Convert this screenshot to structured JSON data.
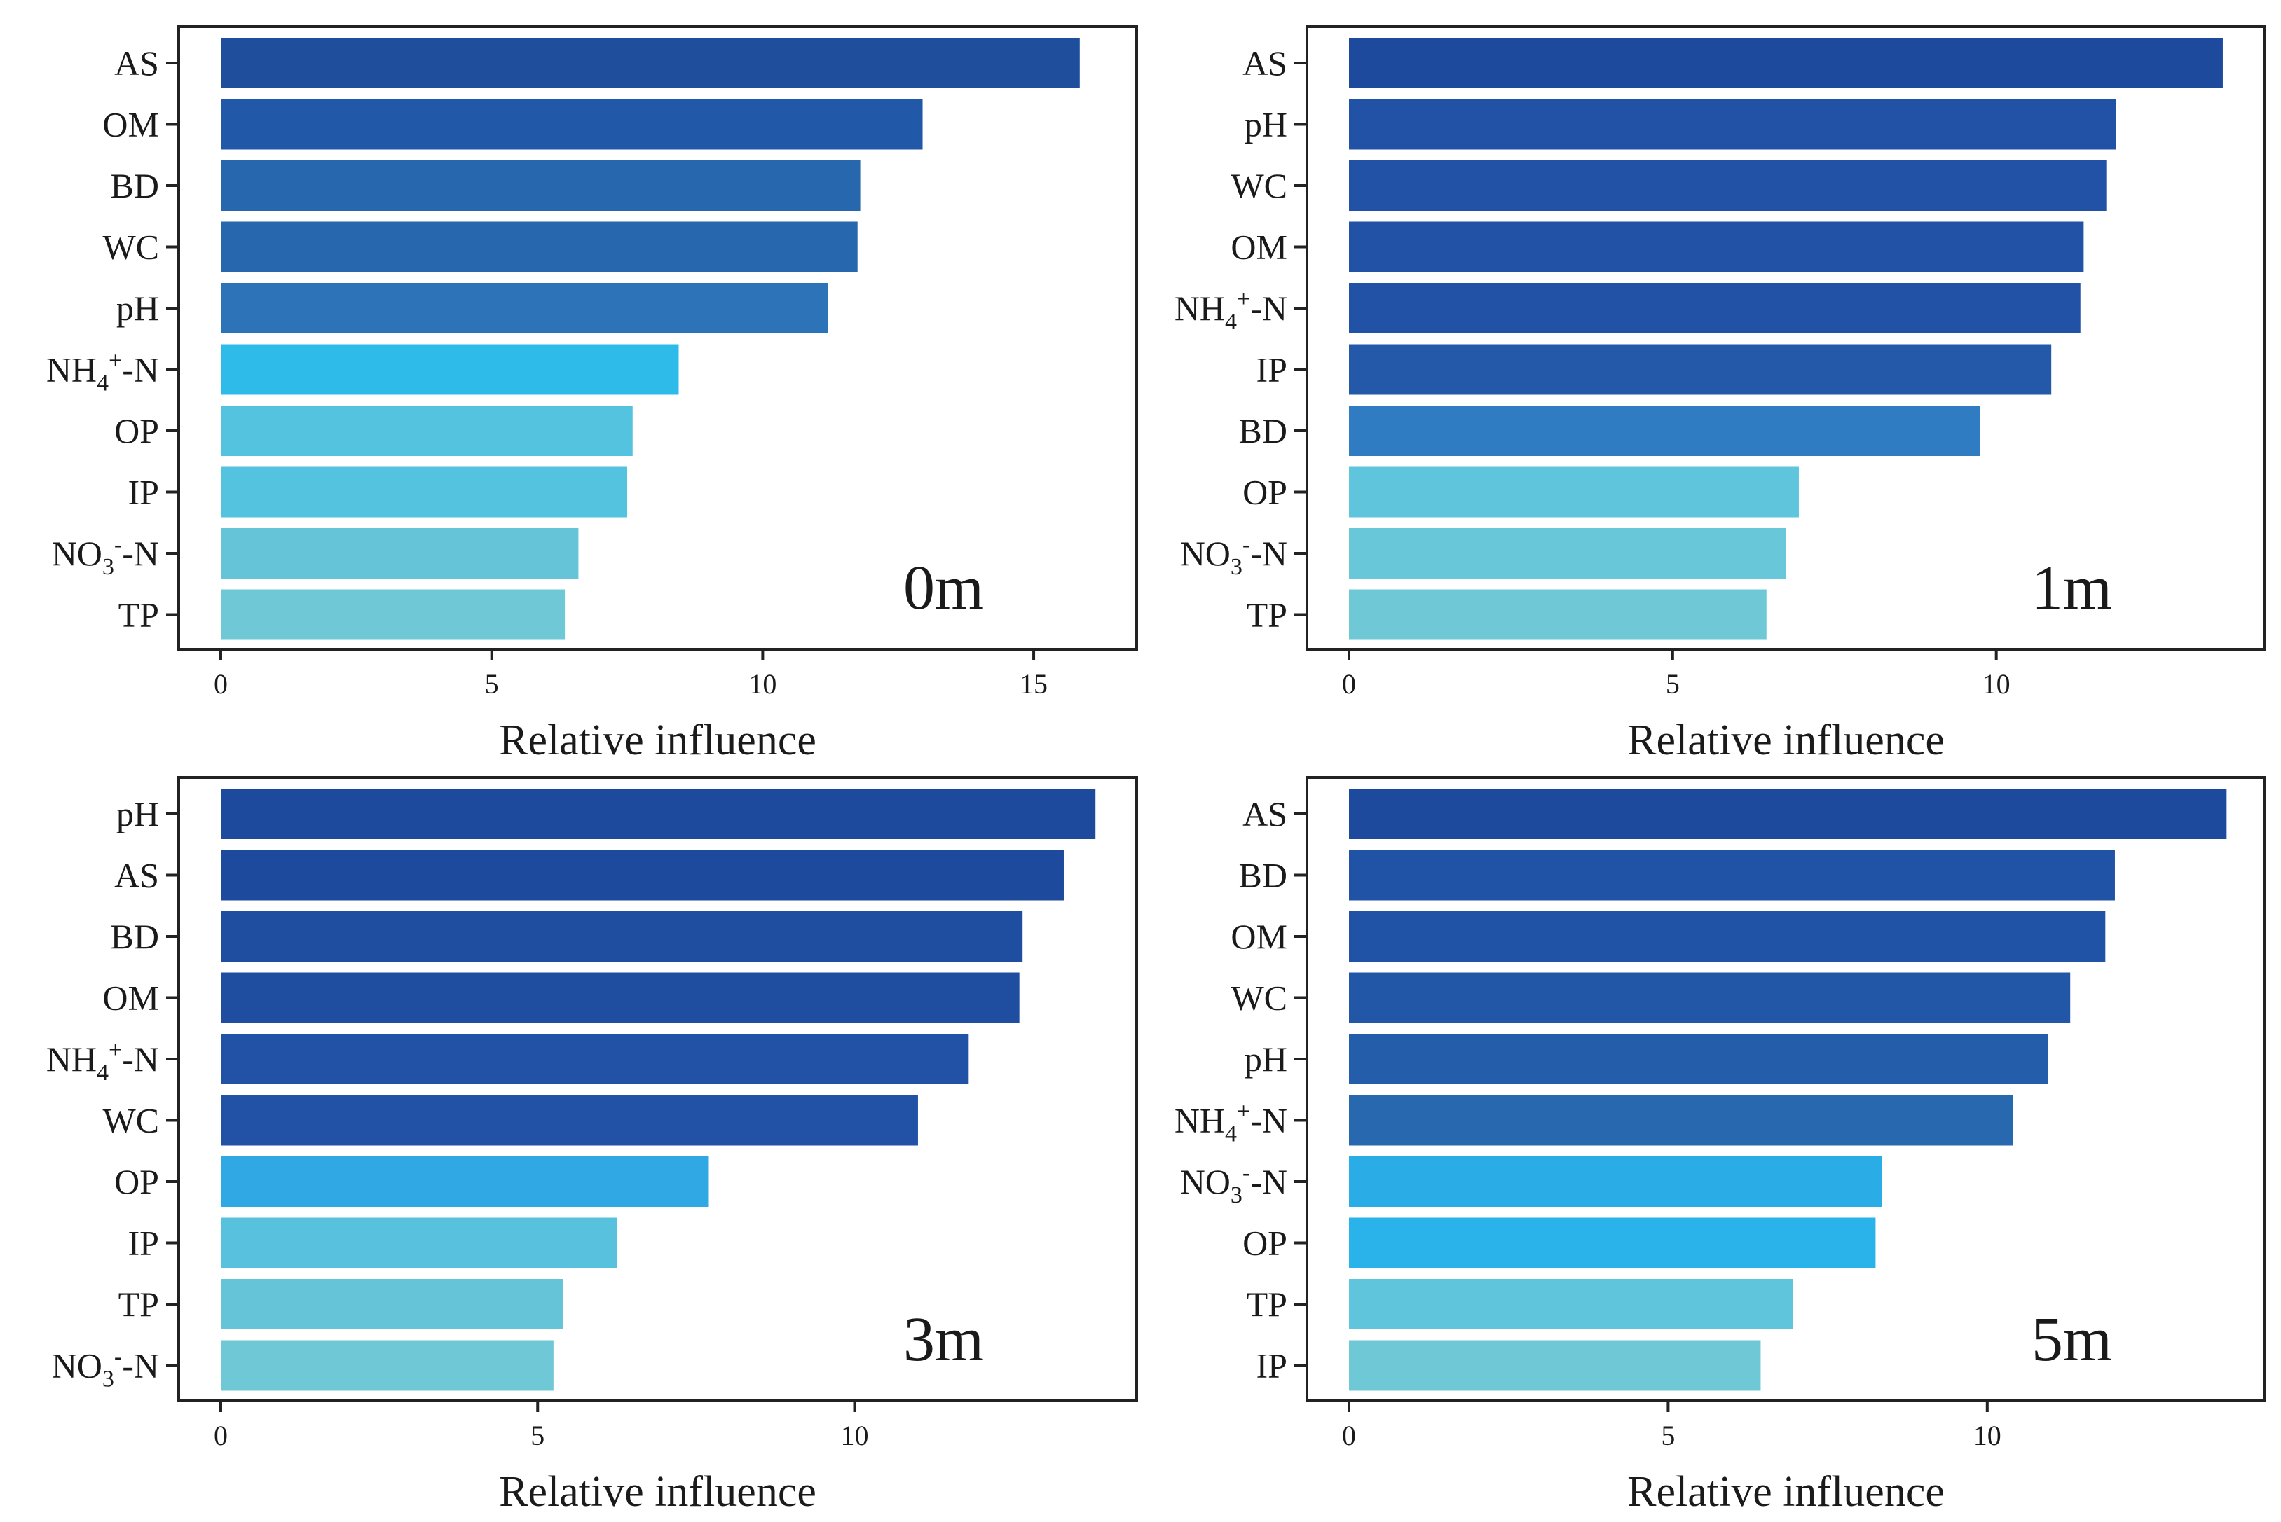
{
  "chart_data": [
    {
      "type": "bar",
      "orientation": "horizontal",
      "annotation": "0m",
      "xlabel": "Relative influence",
      "xlim": [
        0,
        16.9
      ],
      "xticks": [
        0,
        5,
        10,
        15
      ],
      "categories": [
        "AS",
        "OM",
        "BD",
        "WC",
        "pH",
        "NH4+-N",
        "OP",
        "IP",
        "NO3--N",
        "TP"
      ],
      "values": [
        15.85,
        12.95,
        11.8,
        11.75,
        11.2,
        8.45,
        7.6,
        7.5,
        6.6,
        6.35
      ],
      "colors": [
        "#1f4e9c",
        "#2258a8",
        "#2767ae",
        "#2767ae",
        "#2c73b8",
        "#2fbbea",
        "#54c3e0",
        "#54c3e0",
        "#66c4d9",
        "#6fc8d6"
      ],
      "grid": false,
      "legend": "none"
    },
    {
      "type": "bar",
      "orientation": "horizontal",
      "annotation": "1m",
      "xlabel": "Relative influence",
      "xlim": [
        0,
        14.15
      ],
      "xticks": [
        0,
        5,
        10
      ],
      "categories": [
        "AS",
        "pH",
        "WC",
        "OM",
        "NH4+-N",
        "IP",
        "BD",
        "OP",
        "NO3--N",
        "TP"
      ],
      "values": [
        13.5,
        11.85,
        11.7,
        11.35,
        11.3,
        10.85,
        9.75,
        6.95,
        6.75,
        6.45
      ],
      "colors": [
        "#1e4a9e",
        "#2152a5",
        "#2152a5",
        "#2152a5",
        "#2152a5",
        "#2458a8",
        "#2f7cc2",
        "#5ec5dc",
        "#68c7d8",
        "#6fc8d6"
      ],
      "grid": false,
      "legend": "none"
    },
    {
      "type": "bar",
      "orientation": "horizontal",
      "annotation": "3m",
      "xlabel": "Relative influence",
      "xlim": [
        0,
        14.45
      ],
      "xticks": [
        0,
        5,
        10
      ],
      "categories": [
        "pH",
        "AS",
        "BD",
        "OM",
        "NH4+-N",
        "WC",
        "OP",
        "IP",
        "TP",
        "NO3--N"
      ],
      "values": [
        13.8,
        13.3,
        12.65,
        12.6,
        11.8,
        11.0,
        7.7,
        6.25,
        5.4,
        5.25
      ],
      "colors": [
        "#1e4a9e",
        "#1e4a9e",
        "#1f4ea1",
        "#1f4ea1",
        "#2152a5",
        "#2152a5",
        "#30a8e3",
        "#58c1dd",
        "#66c4d9",
        "#6fc8d6"
      ],
      "grid": false,
      "legend": "none"
    },
    {
      "type": "bar",
      "orientation": "horizontal",
      "annotation": "5m",
      "xlabel": "Relative influence",
      "xlim": [
        0,
        14.35
      ],
      "xticks": [
        0,
        5,
        10
      ],
      "categories": [
        "AS",
        "BD",
        "OM",
        "WC",
        "pH",
        "NH4+-N",
        "NO3--N",
        "OP",
        "TP",
        "IP"
      ],
      "values": [
        13.75,
        12.0,
        11.85,
        11.3,
        10.95,
        10.4,
        8.35,
        8.25,
        6.95,
        6.45
      ],
      "colors": [
        "#1e4a9e",
        "#2052a5",
        "#2052a5",
        "#2257a8",
        "#245daa",
        "#2768ae",
        "#2aace6",
        "#2ab3ea",
        "#5fc5dc",
        "#6fc8d6"
      ],
      "grid": false,
      "legend": "none"
    }
  ]
}
